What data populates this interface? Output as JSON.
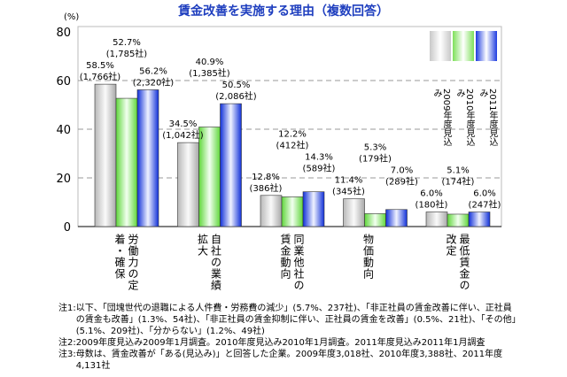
{
  "chart_data": {
    "type": "bar",
    "title": "賃金改善を実施する理由（複数回答）",
    "ylabel": "(%)",
    "ylim": [
      0,
      80
    ],
    "yticks": [
      0,
      20,
      40,
      60,
      80
    ],
    "grid": true,
    "legend_position": "top-right",
    "categories": [
      "労働力の定着・確保",
      "自社の業績拡大",
      "同業他社の賃金動向",
      "物価動向",
      "最低賃金の改定"
    ],
    "series": [
      {
        "name": "2009年度見込み",
        "color": "#c8c8c8",
        "values": [
          58.5,
          34.5,
          12.8,
          11.4,
          6.0
        ],
        "counts": [
          "1,766社",
          "1,042社",
          "386社",
          "345社",
          "180社"
        ]
      },
      {
        "name": "2010年度見込み",
        "color": "#7ee05a",
        "values": [
          52.7,
          40.9,
          12.2,
          5.3,
          5.1
        ],
        "counts": [
          "1,785社",
          "1,385社",
          "412社",
          "179社",
          "174社"
        ]
      },
      {
        "name": "2011年度見込み",
        "color": "#1e3ce0",
        "values": [
          56.2,
          50.5,
          14.3,
          7.0,
          6.0
        ],
        "counts": [
          "2,320社",
          "2,086社",
          "589社",
          "289社",
          "247社"
        ]
      }
    ]
  },
  "notes": [
    {
      "label": "注1:",
      "text": "以下、「団塊世代の退職による人件費・労務費の減少」(5.7%、237社)、「非正社員の賃金改善に伴い、正社員の賃金も改善」(1.3%、54社)、「非正社員の賃金抑制に伴い、正社員の賃金を改善」(0.5%、21社)、「その他」(5.1%、209社)、「分からない」(1.2%、49社)"
    },
    {
      "label": "注2:",
      "text": "2009年度見込み2009年1月調査。2010年度見込み2010年1月調査。2011年度見込み2011年1月調査"
    },
    {
      "label": "注3:",
      "text": "母数は、賃金改善が「ある(見込み)」と回答した企業。2009年度3,018社、2010年度3,388社、2011年度4,131社"
    }
  ]
}
